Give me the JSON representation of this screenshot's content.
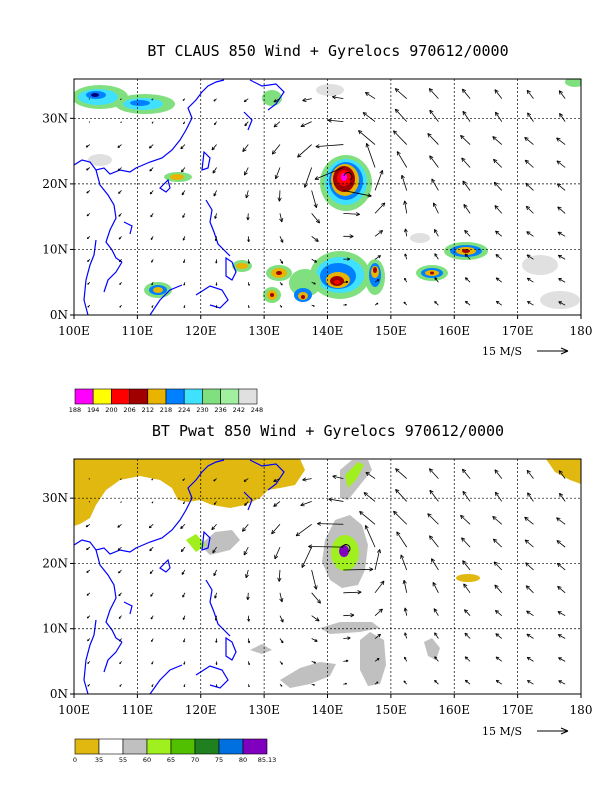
{
  "chart_data": [
    {
      "type": "heatmap",
      "title": "BT CLAUS 850 Wind + Gyrelocs 970612/0000",
      "x_ticks": [
        "100E",
        "110E",
        "120E",
        "130E",
        "140E",
        "150E",
        "160E",
        "170E",
        "180"
      ],
      "y_ticks": [
        "0N",
        "10N",
        "20N",
        "30N"
      ],
      "xlim": [
        100,
        180
      ],
      "ylim": [
        0,
        36
      ],
      "grid": true,
      "vector_scale_label": "15 M/S",
      "colorbar": {
        "labels": [
          "188",
          "194",
          "200",
          "206",
          "212",
          "218",
          "224",
          "230",
          "236",
          "242",
          "248"
        ],
        "colors": [
          "#ff00ff",
          "#ffff00",
          "#ff0000",
          "#a00000",
          "#e8b400",
          "#0080ff",
          "#40e0ff",
          "#80e080",
          "#a0f0a0",
          "#e0e0e0"
        ]
      },
      "storm_center": {
        "lon": 143,
        "lat": 21.5
      }
    },
    {
      "type": "heatmap",
      "title": "BT Pwat 850 Wind + Gyrelocs 970612/0000",
      "x_ticks": [
        "100E",
        "110E",
        "120E",
        "130E",
        "140E",
        "150E",
        "160E",
        "170E",
        "180"
      ],
      "y_ticks": [
        "0N",
        "10N",
        "20N",
        "30N"
      ],
      "xlim": [
        100,
        180
      ],
      "ylim": [
        0,
        36
      ],
      "grid": true,
      "vector_scale_label": "15 M/S",
      "colorbar": {
        "labels": [
          "0",
          "35",
          "55",
          "60",
          "65",
          "70",
          "75",
          "80",
          "85.13"
        ],
        "colors": [
          "#e0b810",
          "#ffffff",
          "#c0c0c0",
          "#a0f020",
          "#50c000",
          "#208020",
          "#0070e0",
          "#8000c0"
        ]
      },
      "storm_center": {
        "lon": 142.5,
        "lat": 21
      }
    }
  ]
}
